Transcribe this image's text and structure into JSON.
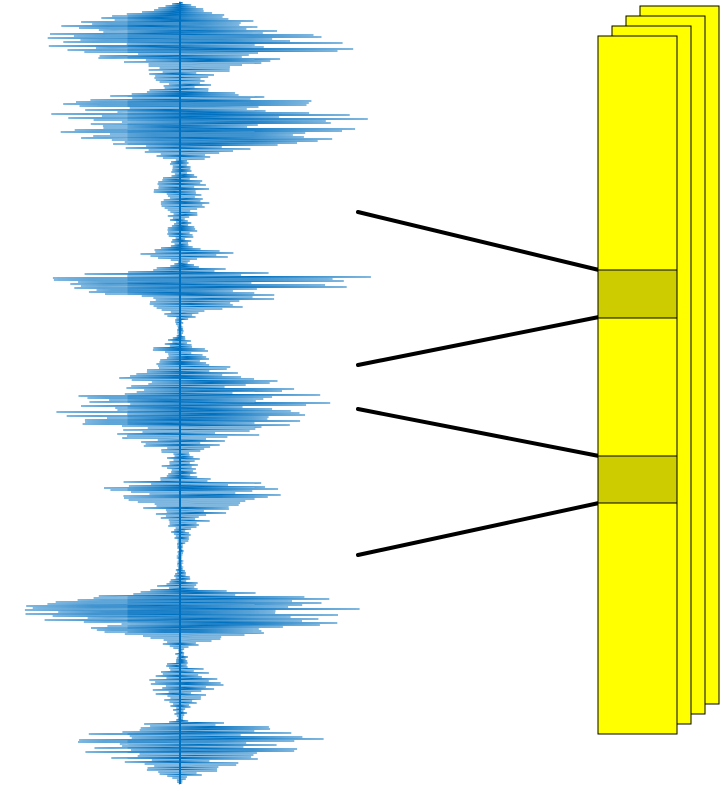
{
  "diagram": {
    "waveform": {
      "color": "#0070c0",
      "orientation": "vertical"
    },
    "frame_stack": {
      "fill": "#ffff00",
      "border": "#000000",
      "frame_count": 4,
      "highlight_fill": "#cccc00",
      "highlight_count": 2
    },
    "connector": {
      "color": "#000000",
      "count": 4
    }
  }
}
